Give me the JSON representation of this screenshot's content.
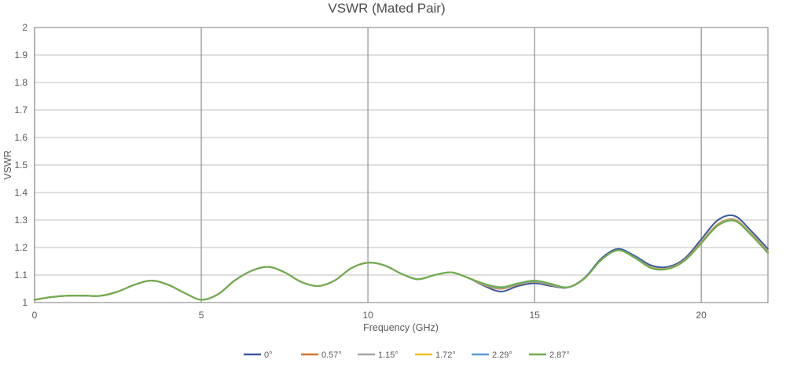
{
  "chart_data": {
    "type": "line",
    "title": "VSWR (Mated Pair)",
    "xlabel": "Frequency (GHz)",
    "ylabel": "VSWR",
    "xlim": [
      0,
      22
    ],
    "ylim": [
      1,
      2
    ],
    "x_ticks": [
      0,
      5,
      10,
      15,
      20
    ],
    "x_tick_labels": [
      "0",
      "5",
      "10",
      "15",
      "20"
    ],
    "y_ticks": [
      1,
      1.1,
      1.2,
      1.3,
      1.4,
      1.5,
      1.6,
      1.7,
      1.8,
      1.9,
      2
    ],
    "y_tick_labels": [
      "1",
      "1.1",
      "1.2",
      "1.3",
      "1.4",
      "1.5",
      "1.6",
      "1.7",
      "1.8",
      "1.9",
      "2"
    ],
    "grid": true,
    "legend_position": "bottom",
    "x": [
      0,
      0.5,
      1,
      1.5,
      2,
      2.5,
      3,
      3.5,
      4,
      4.5,
      5,
      5.5,
      6,
      6.5,
      7,
      7.5,
      8,
      8.5,
      9,
      9.5,
      10,
      10.5,
      11,
      11.5,
      12,
      12.5,
      13,
      13.5,
      14,
      14.5,
      15,
      15.5,
      16,
      16.5,
      17,
      17.5,
      18,
      18.5,
      19,
      19.5,
      20,
      20.5,
      21,
      21.5,
      22
    ],
    "series": [
      {
        "name": "0°",
        "color": "#3a5ba0",
        "values": [
          1.01,
          1.02,
          1.025,
          1.025,
          1.025,
          1.04,
          1.065,
          1.08,
          1.065,
          1.035,
          1.01,
          1.03,
          1.08,
          1.115,
          1.13,
          1.11,
          1.075,
          1.06,
          1.08,
          1.125,
          1.145,
          1.135,
          1.105,
          1.085,
          1.1,
          1.11,
          1.09,
          1.06,
          1.04,
          1.06,
          1.07,
          1.06,
          1.055,
          1.09,
          1.16,
          1.195,
          1.17,
          1.135,
          1.13,
          1.16,
          1.23,
          1.3,
          1.315,
          1.26,
          1.195
        ]
      },
      {
        "name": "0.57°",
        "color": "#d4772c",
        "values": [
          1.01,
          1.02,
          1.025,
          1.025,
          1.025,
          1.04,
          1.065,
          1.08,
          1.065,
          1.035,
          1.01,
          1.03,
          1.08,
          1.115,
          1.13,
          1.11,
          1.075,
          1.06,
          1.08,
          1.125,
          1.145,
          1.135,
          1.105,
          1.085,
          1.1,
          1.11,
          1.09,
          1.063,
          1.05,
          1.065,
          1.075,
          1.063,
          1.055,
          1.088,
          1.155,
          1.19,
          1.165,
          1.128,
          1.125,
          1.155,
          1.22,
          1.285,
          1.302,
          1.25,
          1.185
        ]
      },
      {
        "name": "1.15°",
        "color": "#a5a5a5",
        "values": [
          1.01,
          1.02,
          1.025,
          1.025,
          1.025,
          1.04,
          1.065,
          1.08,
          1.065,
          1.035,
          1.01,
          1.03,
          1.08,
          1.115,
          1.13,
          1.11,
          1.075,
          1.06,
          1.08,
          1.125,
          1.145,
          1.135,
          1.105,
          1.085,
          1.1,
          1.11,
          1.09,
          1.064,
          1.052,
          1.066,
          1.076,
          1.064,
          1.055,
          1.088,
          1.155,
          1.19,
          1.165,
          1.127,
          1.124,
          1.154,
          1.218,
          1.283,
          1.3,
          1.248,
          1.183
        ]
      },
      {
        "name": "1.72°",
        "color": "#f2c31a",
        "values": [
          1.01,
          1.02,
          1.025,
          1.025,
          1.025,
          1.04,
          1.065,
          1.08,
          1.065,
          1.035,
          1.01,
          1.03,
          1.08,
          1.115,
          1.13,
          1.11,
          1.075,
          1.06,
          1.08,
          1.125,
          1.145,
          1.135,
          1.105,
          1.085,
          1.1,
          1.11,
          1.09,
          1.065,
          1.053,
          1.067,
          1.077,
          1.065,
          1.055,
          1.088,
          1.155,
          1.19,
          1.165,
          1.127,
          1.124,
          1.154,
          1.217,
          1.282,
          1.299,
          1.247,
          1.182
        ]
      },
      {
        "name": "2.29°",
        "color": "#5b9bd5",
        "values": [
          1.01,
          1.02,
          1.025,
          1.025,
          1.025,
          1.04,
          1.065,
          1.08,
          1.065,
          1.035,
          1.01,
          1.03,
          1.08,
          1.115,
          1.13,
          1.11,
          1.075,
          1.06,
          1.08,
          1.125,
          1.145,
          1.135,
          1.105,
          1.085,
          1.1,
          1.11,
          1.09,
          1.066,
          1.054,
          1.068,
          1.078,
          1.066,
          1.055,
          1.088,
          1.155,
          1.19,
          1.165,
          1.126,
          1.123,
          1.153,
          1.216,
          1.281,
          1.298,
          1.246,
          1.181
        ]
      },
      {
        "name": "2.87°",
        "color": "#70ad47",
        "values": [
          1.01,
          1.02,
          1.025,
          1.025,
          1.025,
          1.04,
          1.065,
          1.08,
          1.065,
          1.035,
          1.01,
          1.03,
          1.08,
          1.115,
          1.13,
          1.11,
          1.075,
          1.06,
          1.08,
          1.125,
          1.145,
          1.135,
          1.105,
          1.085,
          1.1,
          1.11,
          1.09,
          1.068,
          1.056,
          1.07,
          1.08,
          1.068,
          1.056,
          1.088,
          1.155,
          1.19,
          1.163,
          1.125,
          1.122,
          1.152,
          1.215,
          1.28,
          1.297,
          1.245,
          1.18
        ]
      }
    ]
  }
}
